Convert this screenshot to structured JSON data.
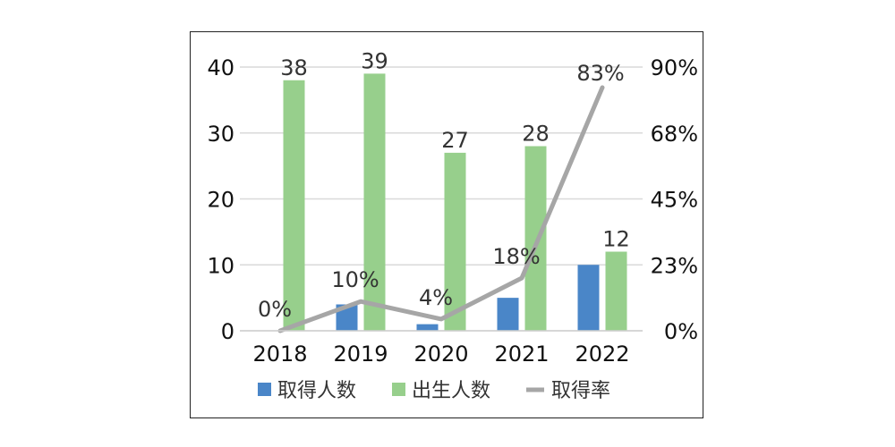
{
  "chart_data": {
    "type": "bar",
    "categories": [
      "2018",
      "2019",
      "2020",
      "2021",
      "2022"
    ],
    "series": [
      {
        "name": "取得人数",
        "kind": "bar",
        "axis": "left",
        "color": "#4a86c8",
        "values": [
          0,
          4,
          1,
          5,
          10
        ]
      },
      {
        "name": "出生人数",
        "kind": "bar",
        "axis": "left",
        "color": "#97cf8c",
        "values": [
          38,
          39,
          27,
          28,
          12
        ],
        "data_labels": [
          "38",
          "39",
          "27",
          "28",
          "12"
        ]
      },
      {
        "name": "取得率",
        "kind": "line",
        "axis": "right",
        "color": "#a6a6a6",
        "values": [
          0,
          10,
          4,
          18,
          83
        ],
        "data_labels": [
          "0%",
          "10%",
          "4%",
          "18%",
          "83%"
        ]
      }
    ],
    "y_left": {
      "ticks": [
        "0",
        "10",
        "20",
        "30",
        "40"
      ],
      "lim": [
        0,
        40
      ]
    },
    "y_right": {
      "ticks": [
        "0%",
        "23%",
        "45%",
        "68%",
        "90%"
      ],
      "lim": [
        0,
        90
      ]
    },
    "grid": true,
    "legend": "bottom",
    "title": "",
    "xlabel": "",
    "ylabel": ""
  }
}
